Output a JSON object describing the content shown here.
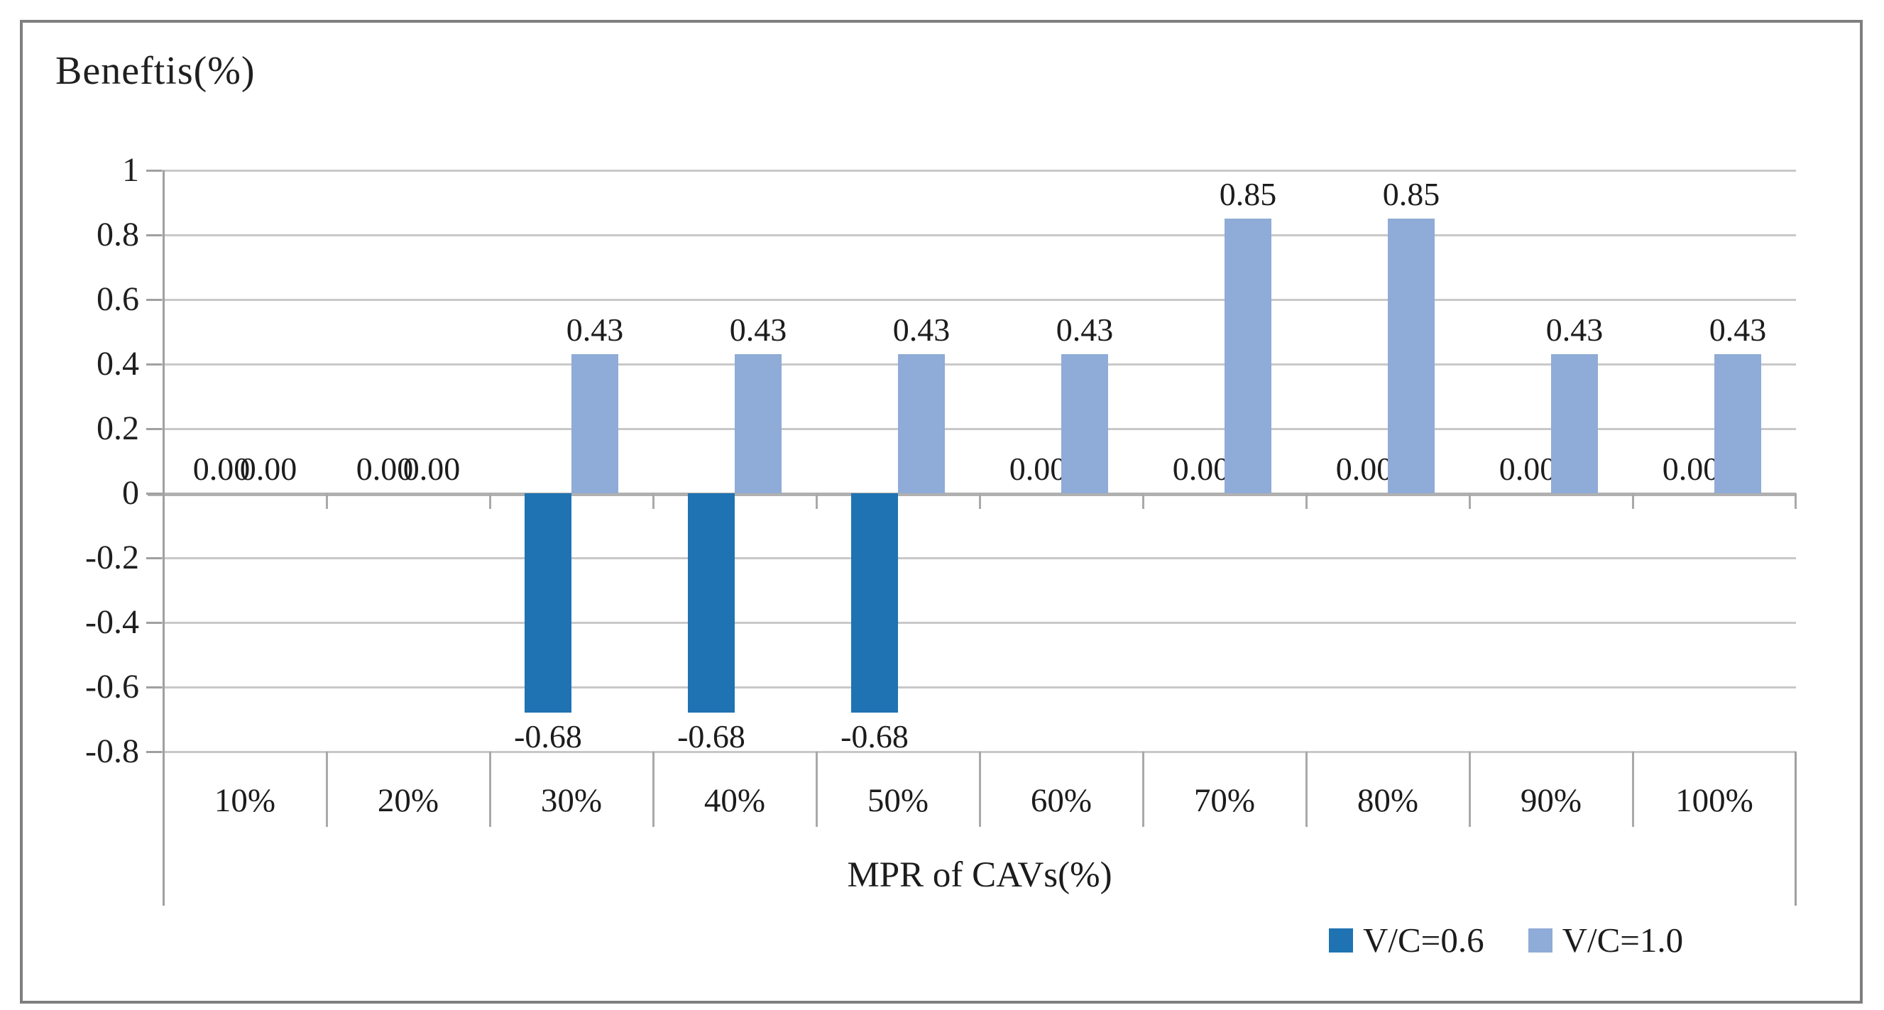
{
  "chart_data": {
    "type": "bar",
    "title": "Beneftis(%)",
    "xlabel": "MPR of CAVs(%)",
    "categories": [
      "10%",
      "20%",
      "30%",
      "40%",
      "50%",
      "60%",
      "70%",
      "80%",
      "90%",
      "100%"
    ],
    "series": [
      {
        "name": "V/C=0.6",
        "color": "#1f73b2",
        "values": [
          0,
          0,
          -0.68,
          -0.68,
          -0.68,
          0,
          0,
          0,
          0,
          0
        ],
        "labels": [
          "0.00",
          "0.00",
          "-0.68",
          "-0.68",
          "-0.68",
          "0.00",
          "0.00",
          "0.00",
          "0.00",
          "0.00"
        ]
      },
      {
        "name": "V/C=1.0",
        "color": "#8fabd7",
        "values": [
          0,
          0,
          0.43,
          0.43,
          0.43,
          0.43,
          0.85,
          0.85,
          0.43,
          0.43
        ],
        "labels": [
          "0.00",
          "0.00",
          "0.43",
          "0.43",
          "0.43",
          "0.43",
          "0.85",
          "0.85",
          "0.43",
          "0.43"
        ]
      }
    ],
    "y_tick_labels": [
      "1",
      "0.8",
      "0.6",
      "0.4",
      "0.2",
      "0",
      "-0.2",
      "-0.4",
      "-0.6",
      "-0.8"
    ],
    "y_tick_values": [
      1,
      0.8,
      0.6,
      0.4,
      0.2,
      0,
      -0.2,
      -0.4,
      -0.6,
      -0.8
    ],
    "ylim": [
      -0.8,
      1
    ],
    "grid": true,
    "legend_position": "bottom-right",
    "colors": {
      "grid": "#c8c8c8",
      "zero_line": "#b0b0b0",
      "axis": "#a0a0a2",
      "frame_border": "#7f7f7f",
      "text": "#1c1c1c"
    }
  },
  "legend": {
    "items": [
      {
        "label": "V/C=0.6",
        "color": "#1f73b2"
      },
      {
        "label": "V/C=1.0",
        "color": "#8fabd7"
      }
    ]
  }
}
